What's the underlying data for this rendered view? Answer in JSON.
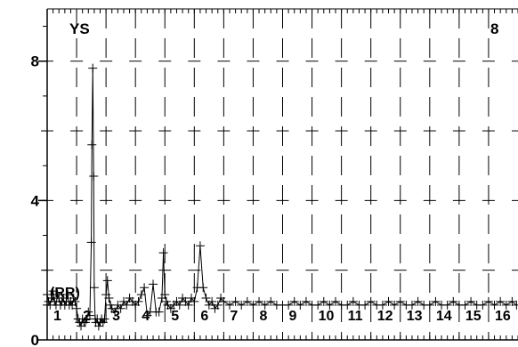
{
  "chart_data": {
    "type": "line",
    "title": "",
    "xlabel": "",
    "ylabel": "",
    "ylim": [
      0,
      9.5
    ],
    "y_ticks": [
      {
        "value": 0,
        "label": "0"
      },
      {
        "value": 4,
        "label": "4"
      },
      {
        "value": 8,
        "label": "8"
      }
    ],
    "y_minor_tick_step": 1,
    "grid": "dashed vertical lane separators and horizontal dash marks at y = 2, 4, 6, 8",
    "corner_labels": {
      "left": "YS",
      "right": "8"
    },
    "annotation": "(RR)",
    "marker": "+",
    "line_color": "#000000",
    "lanes": [
      "1",
      "2",
      "3",
      "4",
      "5",
      "6",
      "7",
      "8",
      "9",
      "10",
      "11",
      "12",
      "13",
      "14",
      "15",
      "16"
    ],
    "series": [
      {
        "x": [
          0,
          0.05,
          0.1,
          0.15,
          0.2,
          0.25,
          0.3,
          0.35,
          0.4,
          0.45,
          0.5,
          0.55,
          0.6,
          0.65,
          0.7,
          0.75,
          0.8,
          0.85,
          0.9,
          0.95,
          1.0,
          1.05,
          1.1,
          1.15,
          1.2,
          1.25,
          1.3,
          1.35,
          1.4,
          1.45,
          1.5,
          1.52,
          1.55,
          1.58,
          1.6,
          1.63,
          1.65,
          1.7,
          1.75,
          1.8,
          1.85,
          1.9,
          1.95,
          2.0,
          2.05,
          2.1,
          2.15,
          2.2,
          2.3,
          2.4,
          2.5,
          2.6,
          2.7,
          2.8,
          2.9,
          3.0,
          3.1,
          3.2,
          3.3,
          3.4,
          3.5,
          3.6,
          3.7,
          3.8,
          3.9,
          3.95,
          4.0,
          4.05,
          4.1,
          4.2,
          4.3,
          4.4,
          4.5,
          4.6,
          4.7,
          4.8,
          4.9,
          5.0,
          5.1,
          5.2,
          5.3,
          5.4,
          5.5,
          5.6,
          5.7,
          5.8,
          5.9,
          6.0,
          6.2,
          6.4,
          6.6,
          6.8,
          7.0,
          7.2,
          7.4,
          7.6,
          7.8,
          8.0,
          8.2,
          8.4,
          8.6,
          8.8,
          9.0,
          9.2,
          9.4,
          9.6,
          9.8,
          10.0,
          10.2,
          10.4,
          10.6,
          10.8,
          11.0,
          11.2,
          11.4,
          11.6,
          11.8,
          12.0,
          12.2,
          12.4,
          12.6,
          12.8,
          13.0,
          13.2,
          13.4,
          13.6,
          13.8,
          14.0,
          14.2,
          14.4,
          14.6,
          14.8,
          15.0,
          15.2,
          15.4,
          15.6,
          15.8,
          15.95
        ],
        "y": [
          1.3,
          1.1,
          1.0,
          1.2,
          1.4,
          1.1,
          1.0,
          1.3,
          1.2,
          1.0,
          1.1,
          1.2,
          1.0,
          1.1,
          1.3,
          1.0,
          1.1,
          1.0,
          1.2,
          1.1,
          0.9,
          0.6,
          0.5,
          0.4,
          0.6,
          0.5,
          0.5,
          0.6,
          0.8,
          0.7,
          2.8,
          5.6,
          7.8,
          4.7,
          1.5,
          0.6,
          0.5,
          0.6,
          0.4,
          0.5,
          0.6,
          0.5,
          0.6,
          1.3,
          1.7,
          1.2,
          1.0,
          0.9,
          0.8,
          1.0,
          0.9,
          1.1,
          1.0,
          1.2,
          1.1,
          1.0,
          1.1,
          1.3,
          1.5,
          0.7,
          0.8,
          1.6,
          0.8,
          0.8,
          1.2,
          2.5,
          1.3,
          1.1,
          1.0,
          0.9,
          1.0,
          1.1,
          1.0,
          1.2,
          1.1,
          1.0,
          1.2,
          1.1,
          1.5,
          2.7,
          1.5,
          1.2,
          1.0,
          1.1,
          0.9,
          1.0,
          1.2,
          1.1,
          1.0,
          1.1,
          1.0,
          1.1,
          1.0,
          1.1,
          1.0,
          1.1,
          1.0,
          1.0,
          1.0,
          1.1,
          1.0,
          1.1,
          1.0,
          1.0,
          1.1,
          1.0,
          1.1,
          1.0,
          1.0,
          1.1,
          1.0,
          1.0,
          1.1,
          1.0,
          1.0,
          1.1,
          1.0,
          1.1,
          1.0,
          1.0,
          1.1,
          1.0,
          1.0,
          1.1,
          1.0,
          1.0,
          1.1,
          1.0,
          1.0,
          1.1,
          1.0,
          1.0,
          1.1,
          1.0,
          1.1,
          1.0,
          1.1,
          1.0
        ]
      }
    ]
  }
}
